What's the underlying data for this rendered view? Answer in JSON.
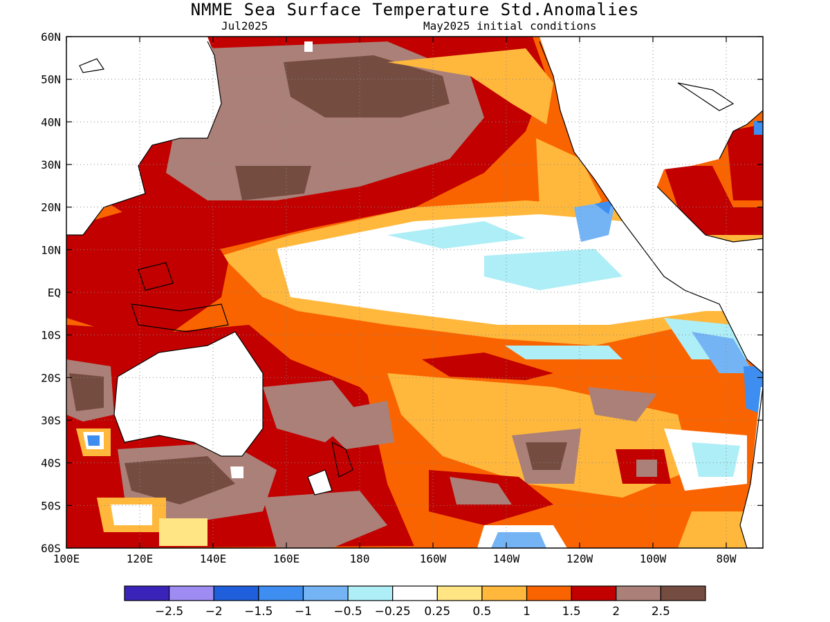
{
  "title": "NMME Sea Surface Temperature Std.Anomalies",
  "subtitle_left": "Jul2025",
  "subtitle_right": "May2025 initial conditions",
  "lat_labels": [
    "60N",
    "50N",
    "40N",
    "30N",
    "20N",
    "10N",
    "EQ",
    "10S",
    "20S",
    "30S",
    "40S",
    "50S",
    "60S"
  ],
  "lon_labels": [
    "100E",
    "120E",
    "140E",
    "160E",
    "180",
    "160W",
    "140W",
    "120W",
    "100W",
    "80W"
  ],
  "colorbar": {
    "colors": [
      "#3a23b8",
      "#9e8cf2",
      "#1f5fdc",
      "#3d8ef0",
      "#74b4f5",
      "#aeeef7",
      "#ffffff",
      "#ffe584",
      "#ffb83c",
      "#fa6400",
      "#c20000",
      "#ab8078",
      "#754c40"
    ],
    "labels": [
      "−2.5",
      "−2",
      "−1.5",
      "−1",
      "−0.5",
      "−0.25",
      "0.25",
      "0.5",
      "1",
      "1.5",
      "2",
      "2.5"
    ]
  },
  "palette": {
    "ocean_base": "#fa6400",
    "strong_warm": "#c20000",
    "brown_light": "#ab8078",
    "brown_dark": "#754c40",
    "orange_light": "#ffb83c",
    "yellow": "#ffe584",
    "neutral": "#ffffff",
    "cyan": "#aeeef7",
    "light_blue": "#74b4f5",
    "blue": "#3d8ef0"
  }
}
